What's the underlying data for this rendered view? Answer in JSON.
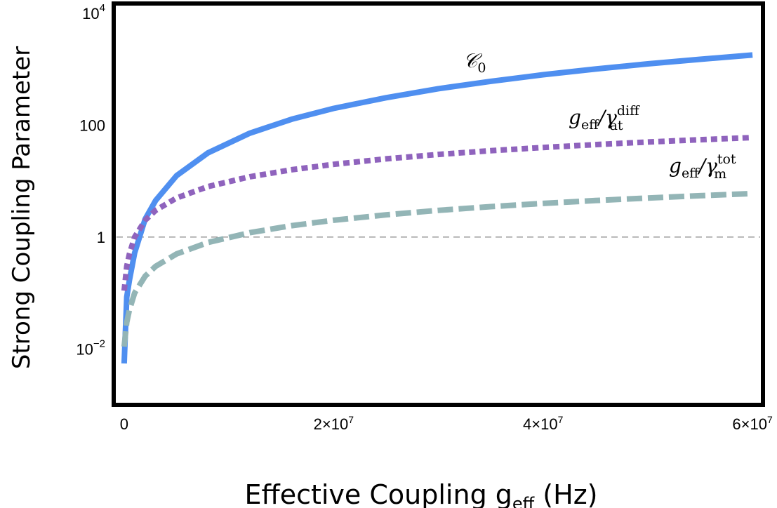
{
  "chart_data": {
    "type": "line",
    "xlabel": "Effective Coupling g",
    "xlabel_sub": "eff",
    "xlabel_unit": "(Hz)",
    "ylabel": "Strong Coupling Parameter",
    "y_scale": "log",
    "xlim": [
      -1000000,
      61000000
    ],
    "ylim": [
      0.001,
      15000
    ],
    "x_ticks": [
      {
        "value": 0,
        "label": "0"
      },
      {
        "value": 20000000,
        "label": "2×10⁷"
      },
      {
        "value": 40000000,
        "label": "4×10⁷"
      },
      {
        "value": 60000000,
        "label": "6×10⁷"
      }
    ],
    "y_ticks": [
      {
        "value": 0.01,
        "label": "10⁻²"
      },
      {
        "value": 1,
        "label": "1"
      },
      {
        "value": 100,
        "label": "100"
      },
      {
        "value": 10000,
        "label": "10⁴"
      }
    ],
    "reference_line": {
      "y": 1,
      "style": "dashed",
      "color": "#888888"
    },
    "grid": false,
    "legend": "inline labels",
    "series": [
      {
        "name": "C0",
        "label_main": "𝒞",
        "label_sub": "0",
        "color": "#4f8ff0",
        "style": "solid",
        "x": [
          0,
          250000,
          500000,
          1000000,
          2000000,
          3000000,
          5000000,
          8000000,
          12000000,
          16000000,
          20000000,
          25000000,
          30000000,
          35000000,
          40000000,
          45000000,
          50000000,
          55000000,
          60000000
        ],
        "y": [
          0.0055,
          0.085,
          0.17,
          0.52,
          2.1,
          4.5,
          12.5,
          32,
          72,
          128,
          200,
          310,
          450,
          610,
          800,
          1010,
          1250,
          1510,
          1800
        ]
      },
      {
        "name": "geff/γat diff",
        "label_main": "g",
        "label_sub": "eff",
        "label_div": "/γ",
        "label_sup": "diff",
        "label_sub2": "at",
        "color": "#8f63bd",
        "style": "dotted",
        "x": [
          0,
          250000,
          500000,
          1000000,
          2000000,
          3000000,
          5000000,
          8000000,
          12000000,
          16000000,
          20000000,
          25000000,
          30000000,
          35000000,
          40000000,
          45000000,
          50000000,
          55000000,
          60000000
        ],
        "y": [
          0.11,
          0.3,
          0.5,
          1.0,
          2.0,
          3.0,
          5.0,
          8.0,
          12,
          16,
          20,
          25,
          30,
          35,
          40,
          45,
          50,
          55,
          60
        ]
      },
      {
        "name": "geff/γm tot",
        "label_main": "g",
        "label_sub": "eff",
        "label_div": "/γ",
        "label_sup": "tot",
        "label_sub2": "m",
        "color": "#93b5b6",
        "style": "dashed",
        "x": [
          0,
          250000,
          500000,
          1000000,
          2000000,
          3000000,
          5000000,
          8000000,
          12000000,
          16000000,
          20000000,
          25000000,
          30000000,
          35000000,
          40000000,
          45000000,
          50000000,
          55000000,
          60000000
        ],
        "y": [
          0.011,
          0.03,
          0.05,
          0.1,
          0.2,
          0.3,
          0.5,
          0.8,
          1.2,
          1.6,
          2.0,
          2.5,
          3.0,
          3.5,
          4.0,
          4.5,
          5.0,
          5.5,
          6.0
        ]
      }
    ]
  }
}
